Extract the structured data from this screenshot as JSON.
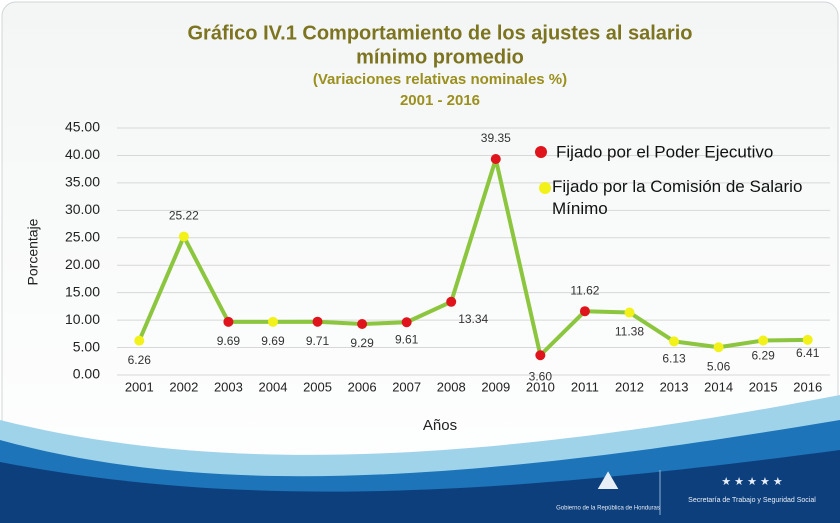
{
  "chart_data": {
    "type": "line",
    "title": "Gráfico IV.1 Comportamiento de los ajustes al salario",
    "title_line2": "mínimo promedio",
    "subtitle": "(Variaciones relativas nominales %)",
    "period": "2001 - 2016",
    "x_label": "Años",
    "y_label": "Porcentaje",
    "categories": [
      "2001",
      "2002",
      "2003",
      "2004",
      "2005",
      "2006",
      "2007",
      "2008",
      "2009",
      "2010",
      "2011",
      "2012",
      "2013",
      "2014",
      "2015",
      "2016"
    ],
    "values": [
      6.26,
      25.22,
      9.69,
      9.69,
      9.71,
      9.29,
      9.61,
      13.34,
      39.35,
      3.6,
      11.62,
      11.38,
      6.13,
      5.06,
      6.29,
      6.41
    ],
    "value_labels": [
      "6.26",
      "25.22",
      "9.69",
      "9.69",
      "9.71",
      "9.29",
      "9.61",
      "13.34",
      "39.35",
      "3.60",
      "11.62",
      "11.38",
      "6.13",
      "5.06",
      "6.29",
      "6.41"
    ],
    "color": "#8cc63e",
    "legend": [
      {
        "name": "Fijado por el Poder Ejecutivo",
        "color": "#e0141c"
      },
      {
        "name": "Fijado por la Comisión de Salario Mínimo",
        "color": "#f2f21a"
      }
    ],
    "marker_legend": [
      1,
      1,
      0,
      1,
      0,
      0,
      0,
      0,
      0,
      0,
      0,
      1,
      1,
      1,
      1,
      1
    ],
    "ylim": [
      0,
      45
    ],
    "yticks": [
      {
        "value": 0,
        "label": "0.00"
      },
      {
        "value": 5,
        "label": "5.00"
      },
      {
        "value": 10,
        "label": "10.00"
      },
      {
        "value": 15,
        "label": "15.00"
      },
      {
        "value": 20,
        "label": "20.00"
      },
      {
        "value": 25,
        "label": "25.00"
      },
      {
        "value": 30,
        "label": "30.00"
      },
      {
        "value": 35,
        "label": "35.00"
      },
      {
        "value": 40,
        "label": "40.00"
      },
      {
        "value": 45,
        "label": "45.00"
      }
    ],
    "grid": true
  },
  "footer": {
    "left": "Gobierno de la República de Honduras",
    "right": "Secretaría de Trabajo y Seguridad Social"
  }
}
